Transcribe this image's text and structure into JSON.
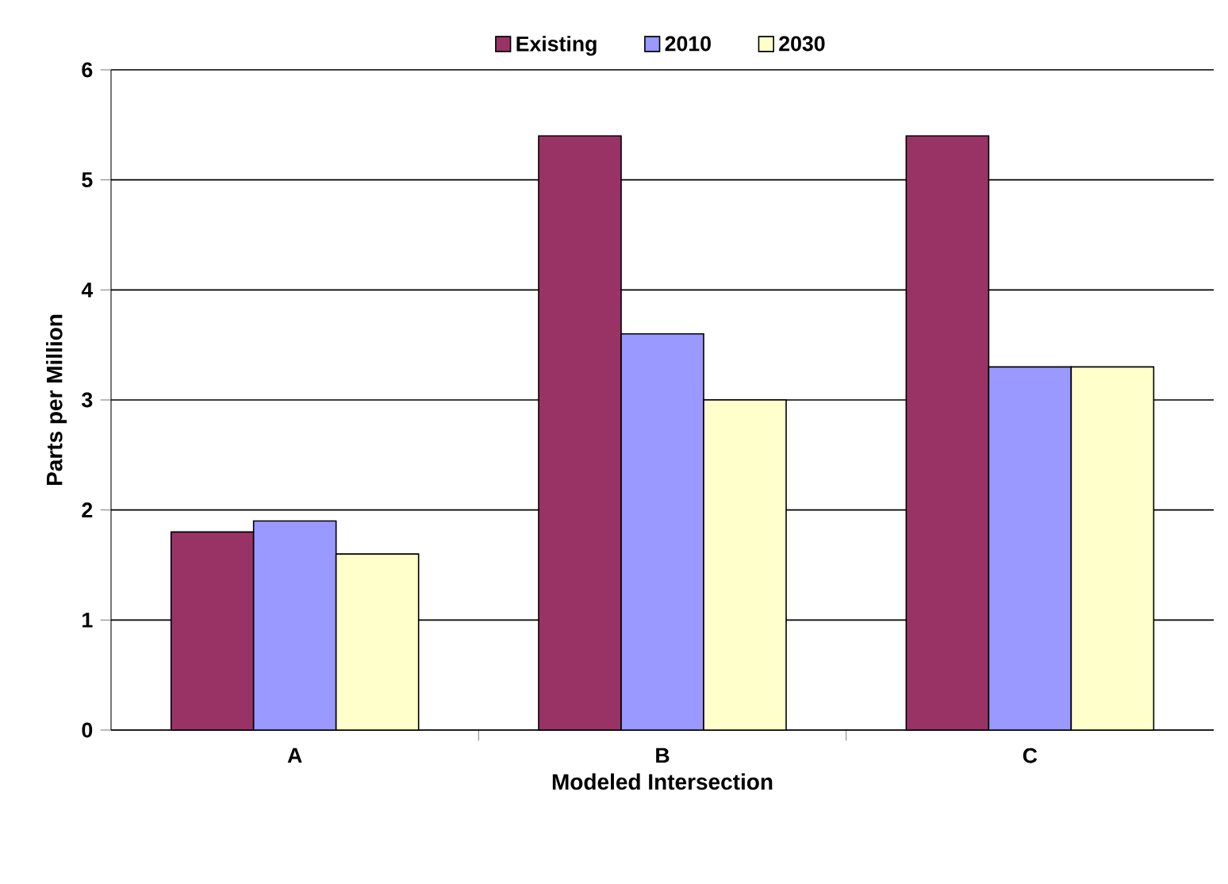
{
  "chart_data": {
    "type": "bar",
    "xlabel": "Modeled Intersection",
    "ylabel": "Parts per Million",
    "categories": [
      "A",
      "B",
      "C"
    ],
    "series": [
      {
        "name": "Existing",
        "color": "#993366",
        "values": [
          1.8,
          5.4,
          5.4
        ]
      },
      {
        "name": "2010",
        "color": "#9999ff",
        "values": [
          1.9,
          3.6,
          3.3
        ]
      },
      {
        "name": "2030",
        "color": "#ffffcc",
        "values": [
          1.6,
          3.0,
          3.3
        ]
      }
    ],
    "ylim": [
      0,
      6
    ],
    "yticks": [
      0,
      1,
      2,
      3,
      4,
      5,
      6
    ],
    "grid": "y",
    "legend": "top"
  }
}
